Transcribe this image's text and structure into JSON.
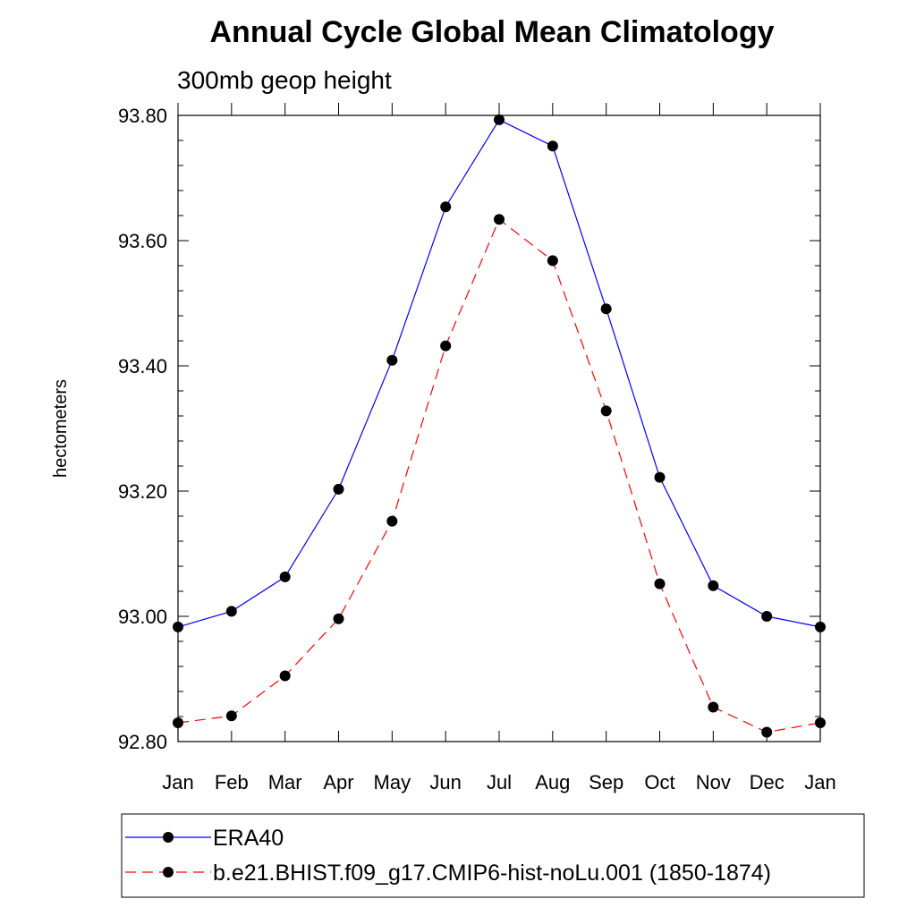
{
  "chart_data": {
    "type": "line",
    "title": "Annual Cycle Global Mean Climatology",
    "subtitle": "300mb geop height",
    "xlabel": "",
    "ylabel": "hectometers",
    "categories": [
      "Jan",
      "Feb",
      "Mar",
      "Apr",
      "May",
      "Jun",
      "Jul",
      "Aug",
      "Sep",
      "Oct",
      "Nov",
      "Dec",
      "Jan"
    ],
    "ylim": [
      92.8,
      93.8
    ],
    "yticks": [
      "92.80",
      "93.00",
      "93.20",
      "93.40",
      "93.60",
      "93.80"
    ],
    "grid": false,
    "legend_position": "bottom",
    "series": [
      {
        "name": "ERA40",
        "color": "#0000ff",
        "line_style": "solid",
        "marker": "filled-circle",
        "values": [
          92.983,
          93.008,
          93.063,
          93.203,
          93.409,
          93.654,
          93.793,
          93.751,
          93.491,
          93.222,
          93.049,
          93.0,
          92.983
        ]
      },
      {
        "name": "b.e21.BHIST.f09_g17.CMIP6-hist-noLu.001 (1850-1874)",
        "color": "#ff0000",
        "line_style": "dashed",
        "marker": "filled-circle",
        "values": [
          92.83,
          92.841,
          92.905,
          92.996,
          93.152,
          93.432,
          93.634,
          93.568,
          93.328,
          93.052,
          92.855,
          92.815,
          92.83
        ]
      }
    ]
  }
}
